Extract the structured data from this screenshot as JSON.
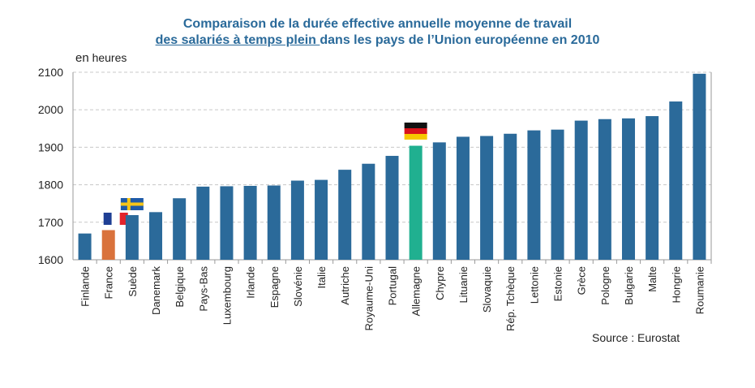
{
  "chart_data": {
    "type": "bar",
    "title_line1": "Comparaison de la durée effective annuelle moyenne de travail",
    "title_line2_underlined": "des salariés à temps plein ",
    "title_line2_rest": "dans les pays de l’Union européenne en 2010",
    "unit_prefix": "en",
    "unit_label": "heures",
    "source": "Source : Eurostat",
    "categories": [
      "Finlande",
      "France",
      "Suède",
      "Danemark",
      "Belgique",
      "Pays-Bas",
      "Luxembourg",
      "Irlande",
      "Espagne",
      "Slovénie",
      "Italie",
      "Autriche",
      "Royaume-Uni",
      "Portugal",
      "Allemagne",
      "Chypre",
      "Lituanie",
      "Slovaquie",
      "Rép. Tchèque",
      "Lettonie",
      "Estonie",
      "Grèce",
      "Pologne",
      "Bulgarie",
      "Malte",
      "Hongrie",
      "Roumanie"
    ],
    "values": [
      1670,
      1679,
      1719,
      1727,
      1764,
      1795,
      1796,
      1797,
      1798,
      1811,
      1813,
      1840,
      1856,
      1877,
      1904,
      1913,
      1928,
      1930,
      1936,
      1945,
      1947,
      1971,
      1975,
      1977,
      1983,
      2022,
      2096
    ],
    "ylim": [
      1600,
      2100
    ],
    "yticks": [
      "1600",
      "1700",
      "1800",
      "1900",
      "2000",
      "2100"
    ],
    "grid": true,
    "colors": {
      "default": "#2b6a9a",
      "France": "#d9723c",
      "Allemagne": "#20b090",
      "title": "#2a6a9a"
    },
    "flag_icons": [
      "france-flag-icon",
      "sweden-flag-icon",
      "germany-flag-icon"
    ]
  }
}
